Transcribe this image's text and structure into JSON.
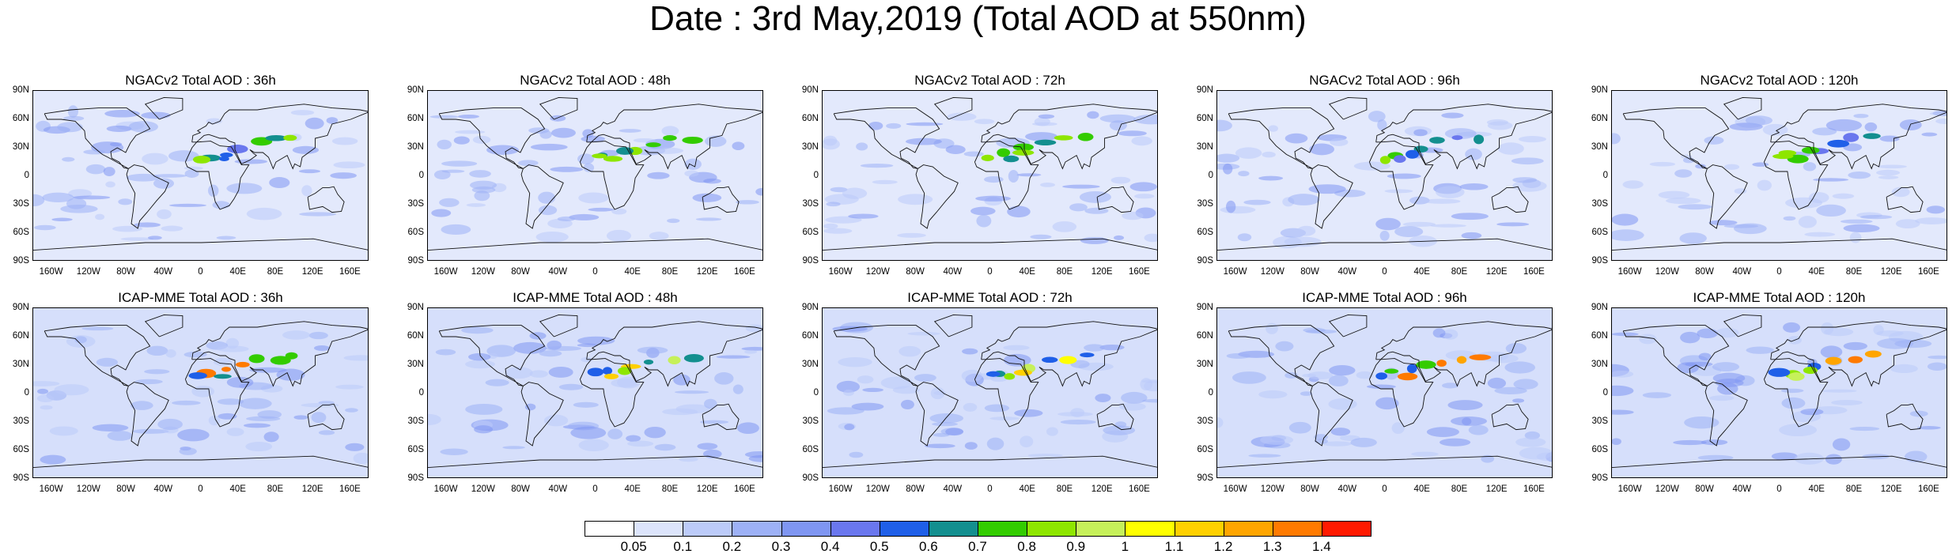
{
  "title": "Date : 3rd May,2019 (Total AOD at 550nm)",
  "lat_labels": [
    "90N",
    "60N",
    "30N",
    "0",
    "30S",
    "60S",
    "90S"
  ],
  "lon_labels": [
    "160W",
    "120W",
    "80W",
    "40W",
    "0",
    "40E",
    "80E",
    "120E",
    "160E"
  ],
  "panels": [
    {
      "title": "NGACv2 Total AOD : 36h"
    },
    {
      "title": "NGACv2 Total AOD : 48h"
    },
    {
      "title": "NGACv2 Total AOD : 72h"
    },
    {
      "title": "NGACv2 Total AOD : 96h"
    },
    {
      "title": "NGACv2 Total AOD : 120h"
    },
    {
      "title": "ICAP-MME Total AOD : 36h"
    },
    {
      "title": "ICAP-MME Total AOD : 48h"
    },
    {
      "title": "ICAP-MME Total AOD : 72h"
    },
    {
      "title": "ICAP-MME Total AOD : 96h"
    },
    {
      "title": "ICAP-MME Total AOD : 120h"
    }
  ],
  "colorbar": {
    "labels": [
      "0.05",
      "0.1",
      "0.2",
      "0.3",
      "0.4",
      "0.5",
      "0.6",
      "0.7",
      "0.8",
      "0.9",
      "1",
      "1.1",
      "1.2",
      "1.3",
      "1.4"
    ],
    "colors": [
      "#ffffff",
      "#dce4fb",
      "#bccbf9",
      "#9db1f6",
      "#7f96f2",
      "#6a77ee",
      "#1f5fe8",
      "#138f8f",
      "#33cc00",
      "#8ee600",
      "#c6f05a",
      "#ffff00",
      "#ffd000",
      "#ffa500",
      "#ff7a00",
      "#ff1a00"
    ]
  }
}
